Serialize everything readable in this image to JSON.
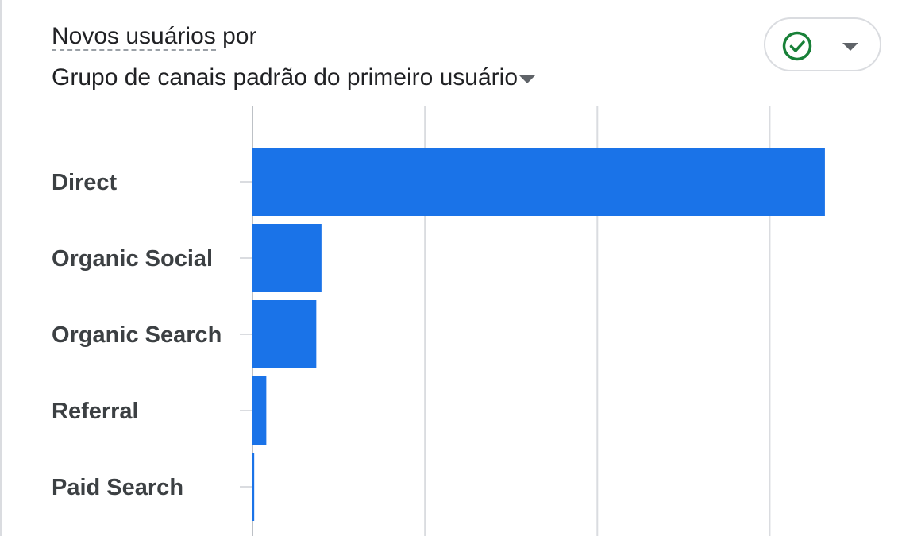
{
  "card": {
    "title_metric": "Novos usuários",
    "title_connector": "por",
    "title_dimension": "Grupo de canais padrão do primeiro usuário"
  },
  "status": {
    "icon": "check-circle-icon",
    "icon_color": "#188038",
    "dropdown_icon": "caret-down-icon"
  },
  "chart_data": {
    "type": "bar",
    "orientation": "horizontal",
    "categories": [
      "Direct",
      "Organic Social",
      "Organic Search",
      "Referral",
      "Paid Search"
    ],
    "values": [
      3.32,
      0.4,
      0.37,
      0.08,
      0.01
    ],
    "xlim": [
      0,
      3.5
    ],
    "grid": true,
    "bar_color": "#1a73e8",
    "gridline_color": "#dadce0"
  }
}
